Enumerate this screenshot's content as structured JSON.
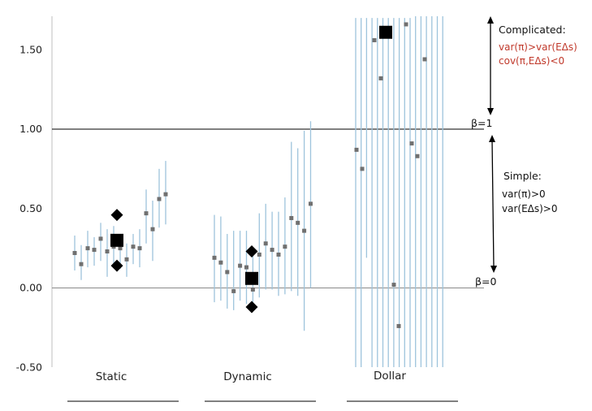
{
  "chart_data": {
    "type": "scatter",
    "title": "",
    "xlabel": "",
    "ylabel": "",
    "ylim": [
      -0.5,
      1.5
    ],
    "yticks": [
      "-0.50",
      "0.00",
      "0.50",
      "1.00",
      "1.50"
    ],
    "reference_lines": [
      {
        "y": 1.0,
        "label": "β=1"
      },
      {
        "y": 0.0,
        "label": "β=0"
      }
    ],
    "groups": [
      {
        "label": "Static",
        "points": [
          {
            "y": 0.22,
            "low": 0.11,
            "high": 0.33
          },
          {
            "y": 0.15,
            "low": 0.05,
            "high": 0.27
          },
          {
            "y": 0.25,
            "low": 0.13,
            "high": 0.36
          },
          {
            "y": 0.24,
            "low": 0.14,
            "high": 0.32
          },
          {
            "y": 0.31,
            "low": 0.17,
            "high": 0.41
          },
          {
            "y": 0.23,
            "low": 0.07,
            "high": 0.37
          },
          {
            "y": 0.26,
            "low": 0.14,
            "high": 0.39
          },
          {
            "y": 0.25,
            "low": 0.12,
            "high": 0.34
          },
          {
            "y": 0.18,
            "low": 0.07,
            "high": 0.28
          },
          {
            "y": 0.26,
            "low": 0.15,
            "high": 0.34
          },
          {
            "y": 0.25,
            "low": 0.13,
            "high": 0.37
          },
          {
            "y": 0.47,
            "low": 0.28,
            "high": 0.62
          },
          {
            "y": 0.37,
            "low": 0.17,
            "high": 0.55
          },
          {
            "y": 0.56,
            "low": 0.38,
            "high": 0.75
          },
          {
            "y": 0.59,
            "low": 0.4,
            "high": 0.8
          }
        ],
        "mean": 0.3,
        "band_upper": 0.46,
        "band_lower": 0.14
      },
      {
        "label": "Dynamic",
        "points": [
          {
            "y": 0.19,
            "low": -0.09,
            "high": 0.46
          },
          {
            "y": 0.16,
            "low": -0.08,
            "high": 0.45
          },
          {
            "y": 0.1,
            "low": -0.13,
            "high": 0.34
          },
          {
            "y": -0.02,
            "low": -0.14,
            "high": 0.36
          },
          {
            "y": 0.14,
            "low": -0.08,
            "high": 0.36
          },
          {
            "y": 0.13,
            "low": -0.1,
            "high": 0.36
          },
          {
            "y": -0.01,
            "low": -0.14,
            "high": 0.25
          },
          {
            "y": 0.21,
            "low": -0.06,
            "high": 0.47
          },
          {
            "y": 0.28,
            "low": -0.01,
            "high": 0.53
          },
          {
            "y": 0.24,
            "low": -0.01,
            "high": 0.48
          },
          {
            "y": 0.21,
            "low": -0.05,
            "high": 0.48
          },
          {
            "y": 0.26,
            "low": -0.04,
            "high": 0.57
          },
          {
            "y": 0.44,
            "low": -0.02,
            "high": 0.92
          },
          {
            "y": 0.41,
            "low": -0.05,
            "high": 0.88
          },
          {
            "y": 0.36,
            "low": -0.27,
            "high": 0.99
          },
          {
            "y": 0.53,
            "low": 0.0,
            "high": 1.05
          }
        ],
        "mean": 0.06,
        "band_upper": 0.23,
        "band_lower": -0.12
      },
      {
        "label": "Dollar",
        "points": [
          {
            "y": 0.87,
            "low": -0.5,
            "high": 1.7
          },
          {
            "y": 0.75,
            "low": -0.5,
            "high": 1.7
          },
          {
            "y": 1.56,
            "low": 0.19,
            "high": 1.7
          },
          {
            "y": 1.32,
            "low": -0.5,
            "high": 1.7
          },
          {
            "y": 1.66,
            "low": -0.5,
            "high": 1.7
          },
          {
            "y": 0.02,
            "low": -0.5,
            "high": 1.7
          },
          {
            "y": -0.24,
            "low": -0.5,
            "high": 1.7
          },
          {
            "y": 1.61,
            "low": -0.5,
            "high": 1.7
          },
          {
            "y": 0.91,
            "low": -0.5,
            "high": 1.7
          },
          {
            "y": 0.83,
            "low": -0.5,
            "high": 1.7
          },
          {
            "y": 1.44,
            "low": -0.5,
            "high": 1.7
          }
        ],
        "mean": 1.61,
        "extra_lines": 6
      }
    ],
    "annotations": {
      "complicated_title": "Complicated:",
      "complicated_line1": "var(π)>var(EΔs)",
      "complicated_line2": "cov(π,EΔs)<0",
      "simple_title": "Simple:",
      "simple_line1": "var(π)>0",
      "simple_line2": "var(EΔs)>0"
    },
    "colors": {
      "errorbar": "#9ec4dc",
      "point": "#707070",
      "mean": "#000000",
      "ref_line": "#000000",
      "zero_line": "#8a8a8a",
      "axis": "#bfbfbf",
      "red_text": "#c0392b"
    }
  }
}
